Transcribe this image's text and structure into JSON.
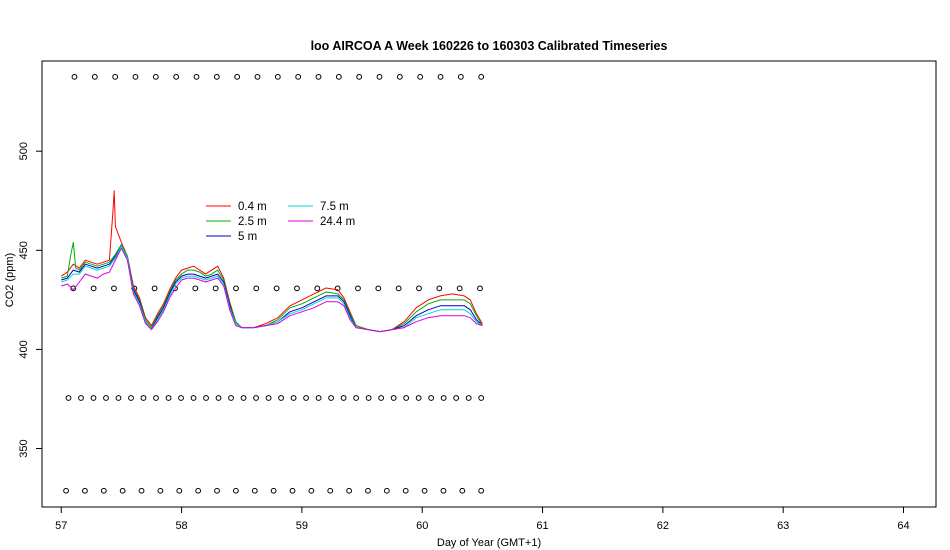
{
  "chart_data": {
    "type": "line",
    "title": "loo AIRCOA A  Week 160226 to 160303  Calibrated Timeseries",
    "xlabel": "Day of Year (GMT+1)",
    "ylabel": "CO2 (ppm)",
    "xlim": [
      56.84,
      64.27
    ],
    "ylim": [
      320.5,
      545.5
    ],
    "x_ticks": [
      "57",
      "58",
      "59",
      "60",
      "61",
      "62",
      "63",
      "64"
    ],
    "y_ticks": [
      "350",
      "400",
      "450",
      "500"
    ],
    "legend_position": "upper-left inside plot",
    "series": [
      {
        "name": "0.4 m",
        "color": "#ff0000",
        "points": [
          [
            57.0,
            437
          ],
          [
            57.05,
            439
          ],
          [
            57.1,
            443
          ],
          [
            57.15,
            441
          ],
          [
            57.2,
            445
          ],
          [
            57.25,
            444
          ],
          [
            57.3,
            443
          ],
          [
            57.35,
            444
          ],
          [
            57.4,
            445
          ],
          [
            57.43,
            470
          ],
          [
            57.44,
            480
          ],
          [
            57.45,
            462
          ],
          [
            57.5,
            454
          ],
          [
            57.55,
            447
          ],
          [
            57.6,
            432
          ],
          [
            57.65,
            426
          ],
          [
            57.7,
            416
          ],
          [
            57.75,
            412
          ],
          [
            57.8,
            418
          ],
          [
            57.85,
            423
          ],
          [
            57.9,
            430
          ],
          [
            57.95,
            436
          ],
          [
            58.0,
            440
          ],
          [
            58.05,
            441
          ],
          [
            58.1,
            442
          ],
          [
            58.15,
            440
          ],
          [
            58.2,
            438
          ],
          [
            58.25,
            440
          ],
          [
            58.3,
            442
          ],
          [
            58.35,
            436
          ],
          [
            58.4,
            424
          ],
          [
            58.45,
            414
          ],
          [
            58.5,
            411
          ],
          [
            58.6,
            411
          ],
          [
            58.7,
            413
          ],
          [
            58.8,
            416
          ],
          [
            58.9,
            422
          ],
          [
            59.0,
            425
          ],
          [
            59.1,
            428
          ],
          [
            59.2,
            431
          ],
          [
            59.3,
            430
          ],
          [
            59.35,
            426
          ],
          [
            59.4,
            419
          ],
          [
            59.45,
            412
          ],
          [
            59.55,
            410
          ],
          [
            59.65,
            409
          ],
          [
            59.75,
            410
          ],
          [
            59.85,
            414
          ],
          [
            59.95,
            421
          ],
          [
            60.05,
            425
          ],
          [
            60.15,
            427
          ],
          [
            60.25,
            428
          ],
          [
            60.35,
            427
          ],
          [
            60.4,
            425
          ],
          [
            60.45,
            418
          ],
          [
            60.5,
            413
          ]
        ]
      },
      {
        "name": "2.5 m",
        "color": "#00b000",
        "points": [
          [
            57.0,
            436
          ],
          [
            57.05,
            437
          ],
          [
            57.08,
            448
          ],
          [
            57.1,
            454
          ],
          [
            57.12,
            441
          ],
          [
            57.15,
            440
          ],
          [
            57.2,
            444
          ],
          [
            57.25,
            443
          ],
          [
            57.3,
            442
          ],
          [
            57.35,
            443
          ],
          [
            57.4,
            444
          ],
          [
            57.45,
            448
          ],
          [
            57.5,
            453
          ],
          [
            57.55,
            447
          ],
          [
            57.6,
            431
          ],
          [
            57.65,
            425
          ],
          [
            57.7,
            415
          ],
          [
            57.75,
            411
          ],
          [
            57.8,
            417
          ],
          [
            57.85,
            422
          ],
          [
            57.9,
            429
          ],
          [
            57.95,
            435
          ],
          [
            58.0,
            438
          ],
          [
            58.05,
            440
          ],
          [
            58.1,
            440
          ],
          [
            58.15,
            439
          ],
          [
            58.2,
            437
          ],
          [
            58.25,
            438
          ],
          [
            58.3,
            440
          ],
          [
            58.35,
            435
          ],
          [
            58.4,
            423
          ],
          [
            58.45,
            414
          ],
          [
            58.5,
            411
          ],
          [
            58.6,
            411
          ],
          [
            58.7,
            412
          ],
          [
            58.8,
            415
          ],
          [
            58.9,
            421
          ],
          [
            59.0,
            423
          ],
          [
            59.1,
            426
          ],
          [
            59.2,
            429
          ],
          [
            59.3,
            428
          ],
          [
            59.35,
            425
          ],
          [
            59.4,
            418
          ],
          [
            59.45,
            412
          ],
          [
            59.55,
            410
          ],
          [
            59.65,
            409
          ],
          [
            59.75,
            410
          ],
          [
            59.85,
            413
          ],
          [
            59.95,
            419
          ],
          [
            60.05,
            423
          ],
          [
            60.15,
            425
          ],
          [
            60.25,
            425
          ],
          [
            60.35,
            425
          ],
          [
            60.4,
            423
          ],
          [
            60.45,
            417
          ],
          [
            60.5,
            412
          ]
        ]
      },
      {
        "name": "5 m",
        "color": "#0000cc",
        "points": [
          [
            57.0,
            435
          ],
          [
            57.05,
            436
          ],
          [
            57.1,
            440
          ],
          [
            57.15,
            439
          ],
          [
            57.2,
            443
          ],
          [
            57.25,
            442
          ],
          [
            57.3,
            441
          ],
          [
            57.35,
            442
          ],
          [
            57.4,
            443
          ],
          [
            57.45,
            447
          ],
          [
            57.5,
            452
          ],
          [
            57.55,
            446
          ],
          [
            57.6,
            430
          ],
          [
            57.65,
            424
          ],
          [
            57.7,
            414
          ],
          [
            57.75,
            410
          ],
          [
            57.8,
            416
          ],
          [
            57.85,
            421
          ],
          [
            57.9,
            428
          ],
          [
            57.95,
            434
          ],
          [
            58.0,
            437
          ],
          [
            58.05,
            438
          ],
          [
            58.1,
            438
          ],
          [
            58.15,
            437
          ],
          [
            58.2,
            436
          ],
          [
            58.25,
            437
          ],
          [
            58.3,
            438
          ],
          [
            58.35,
            434
          ],
          [
            58.4,
            422
          ],
          [
            58.45,
            413
          ],
          [
            58.5,
            411
          ],
          [
            58.6,
            411
          ],
          [
            58.7,
            412
          ],
          [
            58.8,
            414
          ],
          [
            58.9,
            419
          ],
          [
            59.0,
            421
          ],
          [
            59.1,
            424
          ],
          [
            59.2,
            427
          ],
          [
            59.3,
            427
          ],
          [
            59.35,
            424
          ],
          [
            59.4,
            417
          ],
          [
            59.45,
            411
          ],
          [
            59.55,
            410
          ],
          [
            59.65,
            409
          ],
          [
            59.75,
            410
          ],
          [
            59.85,
            412
          ],
          [
            59.95,
            417
          ],
          [
            60.05,
            420
          ],
          [
            60.15,
            422
          ],
          [
            60.25,
            422
          ],
          [
            60.35,
            422
          ],
          [
            60.4,
            420
          ],
          [
            60.45,
            415
          ],
          [
            60.5,
            412
          ]
        ]
      },
      {
        "name": "7.5 m",
        "color": "#00d8d8",
        "points": [
          [
            57.0,
            434
          ],
          [
            57.05,
            435
          ],
          [
            57.1,
            438
          ],
          [
            57.15,
            438
          ],
          [
            57.2,
            442
          ],
          [
            57.25,
            441
          ],
          [
            57.3,
            440
          ],
          [
            57.35,
            441
          ],
          [
            57.4,
            442
          ],
          [
            57.45,
            446
          ],
          [
            57.5,
            452
          ],
          [
            57.55,
            446
          ],
          [
            57.6,
            429
          ],
          [
            57.65,
            423
          ],
          [
            57.7,
            414
          ],
          [
            57.75,
            410
          ],
          [
            57.8,
            415
          ],
          [
            57.85,
            420
          ],
          [
            57.9,
            427
          ],
          [
            57.95,
            433
          ],
          [
            58.0,
            436
          ],
          [
            58.05,
            437
          ],
          [
            58.1,
            437
          ],
          [
            58.15,
            436
          ],
          [
            58.2,
            435
          ],
          [
            58.25,
            436
          ],
          [
            58.3,
            437
          ],
          [
            58.35,
            433
          ],
          [
            58.4,
            421
          ],
          [
            58.45,
            413
          ],
          [
            58.5,
            411
          ],
          [
            58.6,
            411
          ],
          [
            58.7,
            412
          ],
          [
            58.8,
            414
          ],
          [
            58.9,
            418
          ],
          [
            59.0,
            420
          ],
          [
            59.1,
            423
          ],
          [
            59.2,
            426
          ],
          [
            59.3,
            426
          ],
          [
            59.35,
            423
          ],
          [
            59.4,
            416
          ],
          [
            59.45,
            411
          ],
          [
            59.55,
            410
          ],
          [
            59.65,
            409
          ],
          [
            59.75,
            410
          ],
          [
            59.85,
            411
          ],
          [
            59.95,
            416
          ],
          [
            60.05,
            418
          ],
          [
            60.15,
            420
          ],
          [
            60.25,
            420
          ],
          [
            60.35,
            420
          ],
          [
            60.4,
            418
          ],
          [
            60.45,
            414
          ],
          [
            60.5,
            412
          ]
        ]
      },
      {
        "name": "24.4 m",
        "color": "#dd00dd",
        "points": [
          [
            57.0,
            432
          ],
          [
            57.05,
            433
          ],
          [
            57.1,
            430
          ],
          [
            57.15,
            434
          ],
          [
            57.2,
            438
          ],
          [
            57.25,
            437
          ],
          [
            57.3,
            436
          ],
          [
            57.35,
            438
          ],
          [
            57.4,
            439
          ],
          [
            57.45,
            445
          ],
          [
            57.5,
            451
          ],
          [
            57.55,
            445
          ],
          [
            57.6,
            428
          ],
          [
            57.65,
            422
          ],
          [
            57.7,
            413
          ],
          [
            57.75,
            410
          ],
          [
            57.8,
            414
          ],
          [
            57.85,
            419
          ],
          [
            57.9,
            426
          ],
          [
            57.95,
            431
          ],
          [
            58.0,
            435
          ],
          [
            58.05,
            436
          ],
          [
            58.1,
            436
          ],
          [
            58.15,
            435
          ],
          [
            58.2,
            434
          ],
          [
            58.25,
            435
          ],
          [
            58.3,
            436
          ],
          [
            58.35,
            432
          ],
          [
            58.4,
            420
          ],
          [
            58.45,
            412
          ],
          [
            58.5,
            411
          ],
          [
            58.6,
            411
          ],
          [
            58.7,
            412
          ],
          [
            58.8,
            413
          ],
          [
            58.9,
            417
          ],
          [
            59.0,
            419
          ],
          [
            59.1,
            421
          ],
          [
            59.2,
            424
          ],
          [
            59.3,
            424
          ],
          [
            59.35,
            422
          ],
          [
            59.4,
            415
          ],
          [
            59.45,
            411
          ],
          [
            59.55,
            410
          ],
          [
            59.65,
            409
          ],
          [
            59.75,
            410
          ],
          [
            59.85,
            411
          ],
          [
            59.95,
            414
          ],
          [
            60.05,
            416
          ],
          [
            60.15,
            417
          ],
          [
            60.25,
            417
          ],
          [
            60.35,
            417
          ],
          [
            60.4,
            416
          ],
          [
            60.45,
            413
          ],
          [
            60.5,
            412
          ]
        ]
      }
    ],
    "marker_series": [
      {
        "name": "",
        "y": 537.5,
        "x_start": 57.11,
        "x_end": 60.49,
        "count": 21
      },
      {
        "name": "",
        "y": 430.8,
        "x_start": 57.1,
        "x_end": 60.48,
        "count": 21
      },
      {
        "name": "",
        "y": 375.5,
        "x_start": 57.06,
        "x_end": 60.49,
        "count": 34
      },
      {
        "name": "",
        "y": 328.7,
        "x_start": 57.04,
        "x_end": 60.49,
        "count": 23
      }
    ]
  }
}
